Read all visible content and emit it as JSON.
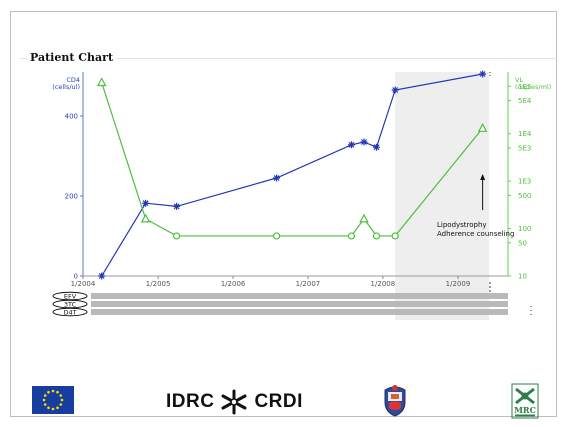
{
  "panel": {
    "title": "Patient Chart"
  },
  "chart_data": {
    "type": "line",
    "x_ticks": [
      "1/2004",
      "1/2005",
      "1/2006",
      "1/2007",
      "1/2008",
      "1/2009"
    ],
    "left_axis": {
      "label_lines": [
        "CD4",
        "(cells/ul)"
      ],
      "ticks": [
        0,
        200,
        400
      ],
      "range": [
        0,
        510
      ],
      "color": "#2a3fbf"
    },
    "right_axis": {
      "label_lines": [
        "VL",
        "(copies/ml)"
      ],
      "ticks": [
        "10",
        "50",
        "100",
        "500",
        "1E3",
        "5E3",
        "1E4",
        "5E4",
        "1E5"
      ],
      "scale": "log",
      "range": [
        10,
        200000
      ],
      "color": "#4fbf3f"
    },
    "series": [
      {
        "name": "CD4",
        "axis": "left",
        "marker": "star",
        "color": "#2438b6",
        "points": [
          [
            "2004-04-01",
            0
          ],
          [
            "2004-11-01",
            182
          ],
          [
            "2005-04-01",
            174
          ],
          [
            "2006-08-01",
            245
          ],
          [
            "2007-08-01",
            328
          ],
          [
            "2007-10-01",
            335
          ],
          [
            "2007-12-01",
            322
          ],
          [
            "2008-03-01",
            465
          ],
          [
            "2009-05-01",
            505
          ]
        ]
      },
      {
        "name": "VL",
        "axis": "right",
        "marker_sequence": [
          "triangle",
          "triangle",
          "circle",
          "circle",
          "circle",
          "triangle",
          "circle",
          "circle",
          "triangle"
        ],
        "color": "#4fbe3e",
        "points": [
          [
            "2004-04-01",
            120000
          ],
          [
            "2004-11-01",
            160
          ],
          [
            "2005-04-01",
            70
          ],
          [
            "2006-08-01",
            70
          ],
          [
            "2007-08-01",
            70
          ],
          [
            "2007-10-01",
            160
          ],
          [
            "2007-12-01",
            70
          ],
          [
            "2008-03-01",
            70
          ],
          [
            "2009-05-01",
            13000
          ]
        ]
      }
    ],
    "shaded_region": {
      "from": "2008-03-01",
      "to": "2009-06-01"
    },
    "annotation": {
      "lines": [
        "Lipodystrophy",
        "Adherence counseling"
      ],
      "date": "2009-05-01"
    },
    "drugs": [
      "EFV",
      "3TC",
      "D4T"
    ]
  },
  "logos": {
    "eu": "eu-flag-icon",
    "idrc_left": "IDRC",
    "idrc_right": "CRDI",
    "crest": "university-crest-icon",
    "mrc": "MRC"
  }
}
